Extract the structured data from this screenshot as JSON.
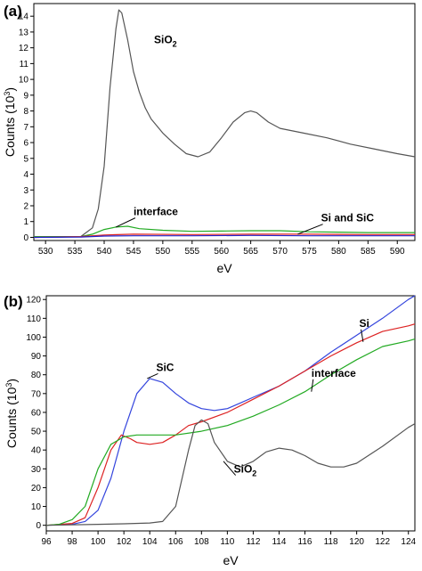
{
  "chart_data": [
    {
      "type": "line",
      "panel_label": "(a)",
      "xlabel": "eV",
      "ylabel_main": "Counts (10",
      "ylabel_sup": "3",
      "ylabel_tail": ")",
      "xlim": [
        528,
        593
      ],
      "ylim": [
        -0.2,
        14.8
      ],
      "xticks": [
        530,
        535,
        540,
        545,
        550,
        555,
        560,
        565,
        570,
        575,
        580,
        585,
        590
      ],
      "yticks": [
        0,
        1,
        2,
        3,
        4,
        5,
        6,
        7,
        8,
        9,
        10,
        11,
        12,
        13,
        14
      ],
      "grid": false,
      "legend": "none",
      "series": [
        {
          "color": "#555555",
          "points": [
            [
              528,
              0
            ],
            [
              536,
              0.05
            ],
            [
              538,
              0.6
            ],
            [
              539,
              1.8
            ],
            [
              540,
              4.5
            ],
            [
              541,
              9.5
            ],
            [
              542,
              13.2
            ],
            [
              542.5,
              14.4
            ],
            [
              543,
              14.2
            ],
            [
              544,
              12.5
            ],
            [
              545,
              10.5
            ],
            [
              546,
              9.2
            ],
            [
              547,
              8.2
            ],
            [
              548,
              7.5
            ],
            [
              550,
              6.6
            ],
            [
              552,
              5.9
            ],
            [
              554,
              5.3
            ],
            [
              556,
              5.1
            ],
            [
              558,
              5.4
            ],
            [
              560,
              6.3
            ],
            [
              562,
              7.3
            ],
            [
              564,
              7.9
            ],
            [
              565,
              8.0
            ],
            [
              566,
              7.9
            ],
            [
              568,
              7.3
            ],
            [
              570,
              6.9
            ],
            [
              574,
              6.6
            ],
            [
              578,
              6.3
            ],
            [
              582,
              5.9
            ],
            [
              586,
              5.6
            ],
            [
              590,
              5.3
            ],
            [
              593,
              5.1
            ]
          ]
        },
        {
          "color": "#22aa22",
          "points": [
            [
              528,
              0.05
            ],
            [
              536,
              0.05
            ],
            [
              538,
              0.2
            ],
            [
              540,
              0.5
            ],
            [
              542,
              0.65
            ],
            [
              544,
              0.7
            ],
            [
              546,
              0.55
            ],
            [
              550,
              0.45
            ],
            [
              555,
              0.38
            ],
            [
              560,
              0.4
            ],
            [
              565,
              0.42
            ],
            [
              570,
              0.42
            ],
            [
              575,
              0.35
            ],
            [
              580,
              0.33
            ],
            [
              585,
              0.3
            ],
            [
              590,
              0.3
            ],
            [
              593,
              0.3
            ]
          ]
        },
        {
          "color": "#dd2222",
          "points": [
            [
              528,
              0
            ],
            [
              536,
              0.05
            ],
            [
              540,
              0.15
            ],
            [
              545,
              0.2
            ],
            [
              555,
              0.18
            ],
            [
              565,
              0.2
            ],
            [
              575,
              0.2
            ],
            [
              585,
              0.18
            ],
            [
              593,
              0.18
            ]
          ]
        },
        {
          "color": "#2222cc",
          "points": [
            [
              528,
              0
            ],
            [
              536,
              0.02
            ],
            [
              540,
              0.08
            ],
            [
              545,
              0.1
            ],
            [
              555,
              0.1
            ],
            [
              565,
              0.12
            ],
            [
              575,
              0.1
            ],
            [
              585,
              0.1
            ],
            [
              593,
              0.1
            ]
          ]
        }
      ],
      "annotations": [
        {
          "text": "SiO",
          "sub": "2",
          "x": 548.5,
          "y": 12.3
        },
        {
          "text": "interface",
          "x": 545,
          "y": 1.4,
          "arrow_to": [
            542,
            0.65
          ]
        },
        {
          "text": "Si and SiC",
          "x": 577,
          "y": 1.0,
          "arrow_to": [
            573,
            0.2
          ]
        }
      ]
    },
    {
      "type": "line",
      "panel_label": "(b)",
      "xlabel": "eV",
      "ylabel_main": "Counts (10",
      "ylabel_sup": "3",
      "ylabel_tail": ")",
      "xlim": [
        96,
        124.5
      ],
      "ylim": [
        -3,
        122
      ],
      "xticks": [
        96,
        98,
        100,
        102,
        104,
        106,
        108,
        110,
        112,
        114,
        116,
        118,
        120,
        122,
        124
      ],
      "yticks": [
        0,
        10,
        20,
        30,
        40,
        50,
        60,
        70,
        80,
        90,
        100,
        110,
        120
      ],
      "grid": false,
      "legend": "none",
      "series": [
        {
          "color": "#3344dd",
          "points": [
            [
              96,
              0
            ],
            [
              98,
              0.5
            ],
            [
              99,
              2
            ],
            [
              100,
              8
            ],
            [
              101,
              25
            ],
            [
              102,
              50
            ],
            [
              103,
              70
            ],
            [
              104,
              78
            ],
            [
              105,
              76
            ],
            [
              106,
              70
            ],
            [
              107,
              65
            ],
            [
              108,
              62
            ],
            [
              109,
              61
            ],
            [
              110,
              62
            ],
            [
              111,
              65
            ],
            [
              112,
              68
            ],
            [
              114,
              74
            ],
            [
              116,
              82
            ],
            [
              118,
              92
            ],
            [
              120,
              101
            ],
            [
              122,
              110
            ],
            [
              124,
              120
            ],
            [
              124.5,
              122
            ]
          ]
        },
        {
          "color": "#dd2222",
          "points": [
            [
              96,
              0
            ],
            [
              98,
              1
            ],
            [
              99,
              4
            ],
            [
              100,
              20
            ],
            [
              101,
              40
            ],
            [
              101.8,
              48
            ],
            [
              102.5,
              46
            ],
            [
              103,
              44
            ],
            [
              104,
              43
            ],
            [
              105,
              44
            ],
            [
              106,
              48
            ],
            [
              107,
              53
            ],
            [
              108,
              55
            ],
            [
              110,
              60
            ],
            [
              112,
              67
            ],
            [
              114,
              74
            ],
            [
              116,
              82
            ],
            [
              118,
              90
            ],
            [
              120,
              97
            ],
            [
              122,
              103
            ],
            [
              124,
              106
            ],
            [
              124.5,
              107
            ]
          ]
        },
        {
          "color": "#22aa22",
          "points": [
            [
              96,
              0
            ],
            [
              97,
              0.5
            ],
            [
              98,
              3
            ],
            [
              99,
              10
            ],
            [
              100,
              30
            ],
            [
              101,
              43
            ],
            [
              102,
              47
            ],
            [
              103,
              48
            ],
            [
              104,
              48
            ],
            [
              106,
              48
            ],
            [
              108,
              50
            ],
            [
              110,
              53
            ],
            [
              112,
              58
            ],
            [
              114,
              64
            ],
            [
              116,
              71
            ],
            [
              118,
              80
            ],
            [
              120,
              88
            ],
            [
              122,
              95
            ],
            [
              124,
              98
            ],
            [
              124.5,
              99
            ]
          ]
        },
        {
          "color": "#555555",
          "points": [
            [
              96,
              0
            ],
            [
              100,
              0.5
            ],
            [
              102,
              0.8
            ],
            [
              104,
              1.2
            ],
            [
              105,
              2
            ],
            [
              106,
              10
            ],
            [
              107,
              40
            ],
            [
              107.5,
              53
            ],
            [
              108,
              56
            ],
            [
              108.5,
              54
            ],
            [
              109,
              44
            ],
            [
              110,
              34
            ],
            [
              111,
              31
            ],
            [
              112,
              34
            ],
            [
              113,
              39
            ],
            [
              114,
              41
            ],
            [
              115,
              40
            ],
            [
              116,
              37
            ],
            [
              117,
              33
            ],
            [
              118,
              31
            ],
            [
              119,
              31
            ],
            [
              120,
              33
            ],
            [
              122,
              42
            ],
            [
              124,
              52
            ],
            [
              124.5,
              54
            ]
          ]
        }
      ],
      "annotations": [
        {
          "text": "SiC",
          "x": 104.5,
          "y": 82,
          "arrow_to": [
            103.8,
            78
          ]
        },
        {
          "text": "Si",
          "x": 120.2,
          "y": 105.5,
          "arrow_to": [
            120.5,
            97.5
          ]
        },
        {
          "text": "interface",
          "x": 116.5,
          "y": 79,
          "arrow_to": [
            116.5,
            71
          ]
        },
        {
          "text": "SiO",
          "sub": "2",
          "x": 110.5,
          "y": 28,
          "arrow_to": [
            109.7,
            34
          ]
        }
      ]
    }
  ]
}
